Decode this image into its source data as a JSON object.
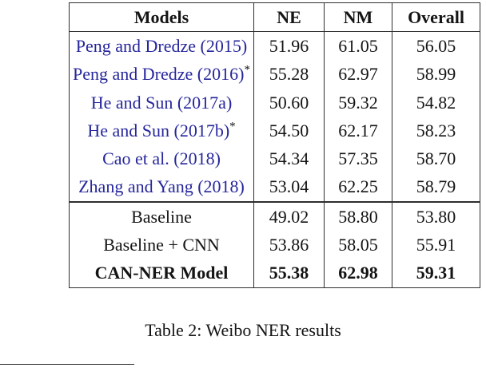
{
  "colors": {
    "citation_blue": "#26269c",
    "border": "#2e2e2e"
  },
  "table": {
    "headers": [
      "Models",
      "NE",
      "NM",
      "Overall"
    ],
    "asterisk_symbol": "*",
    "rows": [
      {
        "label": "Peng and Dredze (2015)",
        "cite": true,
        "asterisk": false,
        "values": [
          "51.96",
          "61.05",
          "56.05"
        ],
        "bold": false,
        "section_start": false
      },
      {
        "label": "Peng and Dredze (2016)",
        "cite": true,
        "asterisk": true,
        "values": [
          "55.28",
          "62.97",
          "58.99"
        ],
        "bold": false,
        "section_start": false
      },
      {
        "label": "He and Sun (2017a)",
        "cite": true,
        "asterisk": false,
        "values": [
          "50.60",
          "59.32",
          "54.82"
        ],
        "bold": false,
        "section_start": false
      },
      {
        "label": "He and Sun (2017b)",
        "cite": true,
        "asterisk": true,
        "values": [
          "54.50",
          "62.17",
          "58.23"
        ],
        "bold": false,
        "section_start": false
      },
      {
        "label": "Cao et al. (2018)",
        "cite": true,
        "asterisk": false,
        "values": [
          "54.34",
          "57.35",
          "58.70"
        ],
        "bold": false,
        "section_start": false
      },
      {
        "label": "Zhang and Yang (2018)",
        "cite": true,
        "asterisk": false,
        "values": [
          "53.04",
          "62.25",
          "58.79"
        ],
        "bold": false,
        "section_start": false
      },
      {
        "label": "Baseline",
        "cite": false,
        "asterisk": false,
        "values": [
          "49.02",
          "58.80",
          "53.80"
        ],
        "bold": false,
        "section_start": true
      },
      {
        "label": "Baseline + CNN",
        "cite": false,
        "asterisk": false,
        "values": [
          "53.86",
          "58.05",
          "55.91"
        ],
        "bold": false,
        "section_start": false
      },
      {
        "label": "CAN-NER Model",
        "cite": false,
        "asterisk": false,
        "values": [
          "55.38",
          "62.98",
          "59.31"
        ],
        "bold": true,
        "section_start": false
      }
    ]
  },
  "caption": "Table 2: Weibo NER results"
}
